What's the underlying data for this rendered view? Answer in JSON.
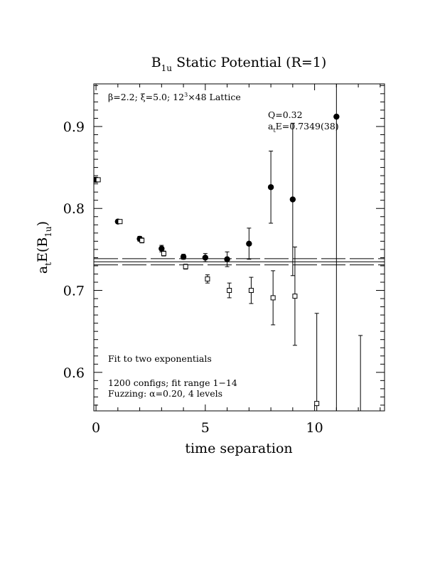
{
  "chart_data": {
    "type": "scatter",
    "title": "B",
    "title_sub": "1u",
    "title_rest": " Static Potential (R=1)",
    "xlabel": "time separation",
    "ylabel": "a",
    "ylabel_sub1": "t",
    "ylabel_mid": "E(B",
    "ylabel_sub2": "1u",
    "ylabel_end": ")",
    "xlim": [
      -0.1,
      13.2
    ],
    "ylim": [
      0.553,
      0.952
    ],
    "x_ticks": [
      0,
      5,
      10
    ],
    "x_tick_labels": [
      "0",
      "5",
      "10"
    ],
    "y_ticks": [
      0.6,
      0.7,
      0.8,
      0.9
    ],
    "y_tick_labels": [
      "0.6",
      "0.7",
      "0.8",
      "0.9"
    ],
    "annotations": {
      "lattice_prefix": "β=2.2; ξ=5.0; 12",
      "lattice_sup": "3",
      "lattice_suffix": "×48 Lattice",
      "q": "Q=0.32",
      "fit_prefix": "a",
      "fit_sub": "t",
      "fit_suffix": "E=0.7349(38)",
      "fit_type": "Fit to two exponentials",
      "configs": "1200 configs; fit range 1−14",
      "fuzzing": "Fuzzing: α=0.20, 4 levels"
    },
    "fit_band": {
      "center": 0.7349,
      "lower": 0.7311,
      "upper": 0.7387
    },
    "series": [
      {
        "marker": "filled-circle",
        "points": [
          {
            "x": 0,
            "y": 0.835,
            "err": 0.003
          },
          {
            "x": 1,
            "y": 0.784,
            "err": 0.002
          },
          {
            "x": 2,
            "y": 0.763,
            "err": 0.003
          },
          {
            "x": 3,
            "y": 0.751,
            "err": 0.004
          },
          {
            "x": 4,
            "y": 0.741,
            "err": 0.003
          },
          {
            "x": 5,
            "y": 0.74,
            "err": 0.005
          },
          {
            "x": 6,
            "y": 0.738,
            "err": 0.009
          },
          {
            "x": 7,
            "y": 0.757,
            "err": 0.019
          },
          {
            "x": 8,
            "y": 0.826,
            "err": 0.044
          },
          {
            "x": 9,
            "y": 0.811,
            "err": 0.093
          },
          {
            "x": 11,
            "y": 0.912,
            "err": 0.36
          }
        ]
      },
      {
        "marker": "open-square",
        "points": [
          {
            "x": 0.1,
            "y": 0.835,
            "err": 0.002
          },
          {
            "x": 1.1,
            "y": 0.784,
            "err": 0.002
          },
          {
            "x": 2.1,
            "y": 0.761,
            "err": 0.003
          },
          {
            "x": 3.1,
            "y": 0.745,
            "err": 0.003
          },
          {
            "x": 4.1,
            "y": 0.729,
            "err": 0.003
          },
          {
            "x": 5.1,
            "y": 0.714,
            "err": 0.005
          },
          {
            "x": 6.1,
            "y": 0.7,
            "err": 0.009
          },
          {
            "x": 7.1,
            "y": 0.7,
            "err": 0.016
          },
          {
            "x": 8.1,
            "y": 0.691,
            "err": 0.033
          },
          {
            "x": 9.1,
            "y": 0.693,
            "err": 0.06
          },
          {
            "x": 10.1,
            "y": 0.562,
            "err": 0.11
          },
          {
            "x": 12.1,
            "y": 0.545,
            "err": 0.1
          }
        ]
      }
    ],
    "grid": false
  }
}
